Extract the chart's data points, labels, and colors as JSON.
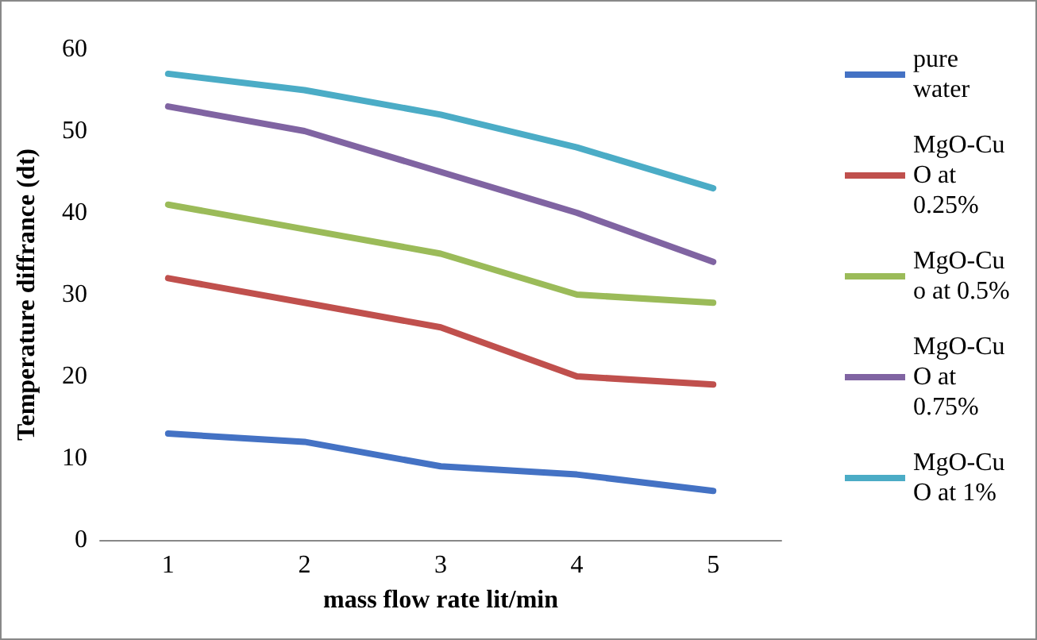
{
  "chart_data": {
    "type": "line",
    "xlabel": "mass flow rate lit/min",
    "ylabel": "Temperature diffrance (dt)",
    "categories": [
      "1",
      "2",
      "3",
      "4",
      "5"
    ],
    "series": [
      {
        "name": "pure water",
        "color": "#4472c4",
        "values": [
          13,
          12,
          9,
          8,
          6
        ]
      },
      {
        "name": "MgO-CuO at 0.25%",
        "color": "#c0504d",
        "values": [
          32,
          29,
          26,
          20,
          19
        ]
      },
      {
        "name": "MgO-Cuo at 0.5%",
        "color": "#9bbb59",
        "values": [
          41,
          38,
          35,
          30,
          29
        ]
      },
      {
        "name": "MgO-CuO at 0.75%",
        "color": "#8064a2",
        "values": [
          53,
          50,
          45,
          40,
          34
        ]
      },
      {
        "name": "MgO-CuO at 1%",
        "color": "#4bacc6",
        "values": [
          57,
          55,
          52,
          48,
          43
        ]
      }
    ],
    "ylim": [
      0,
      60
    ],
    "yticks": [
      0,
      10,
      20,
      30,
      40,
      50,
      60
    ],
    "grid": false,
    "legend": "right",
    "marker": "none",
    "line_style": "solid"
  }
}
